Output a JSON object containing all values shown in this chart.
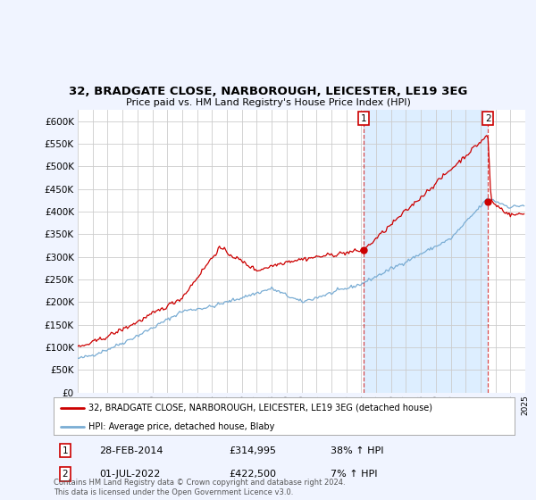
{
  "title": "32, BRADGATE CLOSE, NARBOROUGH, LEICESTER, LE19 3EG",
  "subtitle": "Price paid vs. HM Land Registry's House Price Index (HPI)",
  "ytick_values": [
    0,
    50000,
    100000,
    150000,
    200000,
    250000,
    300000,
    350000,
    400000,
    450000,
    500000,
    550000,
    600000
  ],
  "ylim": [
    0,
    625000
  ],
  "hpi_color": "#7aadd4",
  "price_color": "#cc0000",
  "background_color": "#f0f4ff",
  "plot_bg_color": "#ffffff",
  "grid_color": "#cccccc",
  "shade_color": "#ddeeff",
  "sale1_year": 2014.17,
  "sale1_value": 314995,
  "sale2_year": 2022.5,
  "sale2_value": 422500,
  "legend_label_red": "32, BRADGATE CLOSE, NARBOROUGH, LEICESTER, LE19 3EG (detached house)",
  "legend_label_blue": "HPI: Average price, detached house, Blaby",
  "annotation1_date": "28-FEB-2014",
  "annotation1_price": "£314,995",
  "annotation1_hpi": "38% ↑ HPI",
  "annotation2_date": "01-JUL-2022",
  "annotation2_price": "£422,500",
  "annotation2_hpi": "7% ↑ HPI",
  "footer": "Contains HM Land Registry data © Crown copyright and database right 2024.\nThis data is licensed under the Open Government Licence v3.0."
}
